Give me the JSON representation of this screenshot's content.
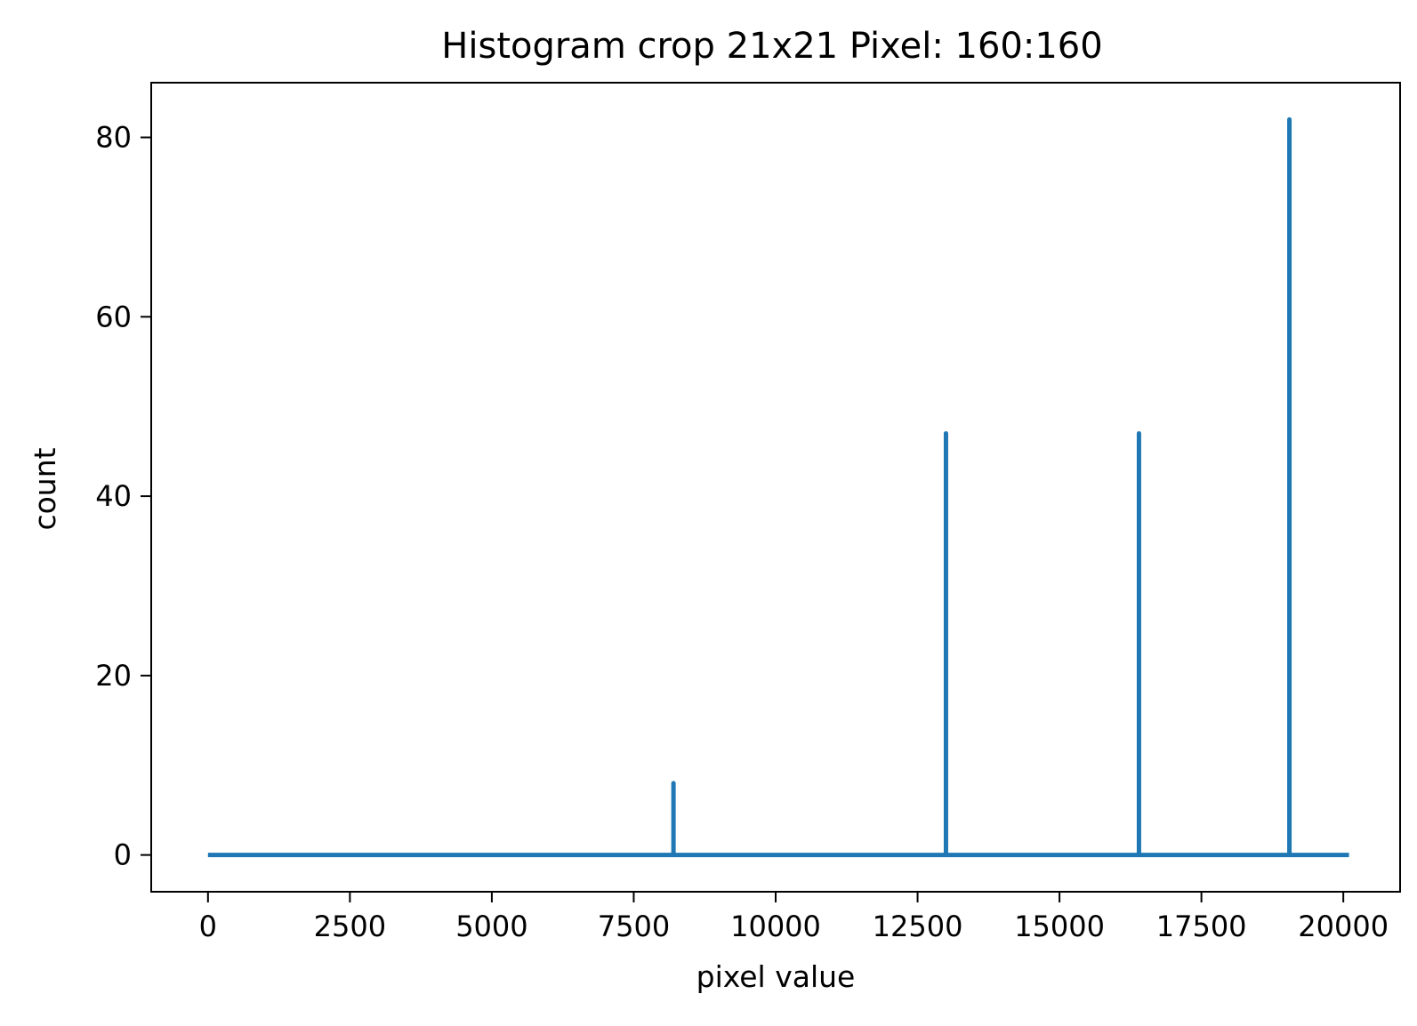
{
  "chart_data": {
    "type": "line",
    "title": "Histogram crop 21x21 Pixel: 160:160",
    "xlabel": "pixel value",
    "ylabel": "count",
    "xlim": [
      -1000,
      21000
    ],
    "ylim": [
      -4.1,
      86.1
    ],
    "x_ticks": [
      0,
      2500,
      5000,
      7500,
      10000,
      12500,
      15000,
      17500,
      20000
    ],
    "y_ticks": [
      0,
      20,
      40,
      60,
      80
    ],
    "grid": false,
    "series": [
      {
        "color": "#1f77b4",
        "baseline": [
          0,
          20100
        ],
        "spikes": [
          {
            "x": 8200,
            "y": 8
          },
          {
            "x": 13000,
            "y": 47
          },
          {
            "x": 16400,
            "y": 47
          },
          {
            "x": 19050,
            "y": 82
          }
        ]
      }
    ]
  }
}
